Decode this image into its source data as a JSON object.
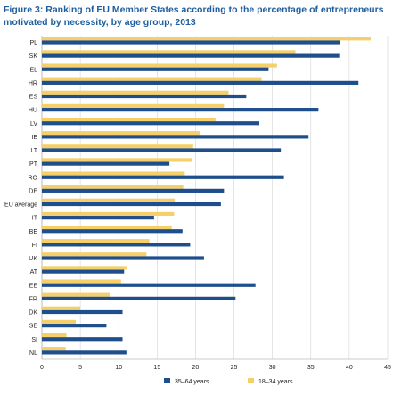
{
  "title": "Figure 3: Ranking of EU Member States according to the percentage of entrepreneurs motivated by necessity, by age group, 2013",
  "chart_data": {
    "type": "bar",
    "orientation": "horizontal",
    "categories": [
      "PL",
      "SK",
      "EL",
      "HR",
      "ES",
      "HU",
      "LV",
      "IE",
      "LT",
      "PT",
      "RO",
      "DE",
      "EU average",
      "IT",
      "BE",
      "FI",
      "UK",
      "AT",
      "EE",
      "FR",
      "DK",
      "SE",
      "SI",
      "NL"
    ],
    "series": [
      {
        "name": "18–34 years",
        "color": "#f5d06a",
        "values": [
          42.8,
          33.0,
          30.6,
          28.6,
          24.3,
          23.7,
          22.6,
          20.6,
          19.7,
          19.5,
          18.6,
          18.4,
          17.3,
          17.2,
          16.9,
          14.0,
          13.6,
          11.0,
          10.3,
          8.9,
          5.0,
          4.4,
          3.2,
          3.1
        ]
      },
      {
        "name": "35–64 years",
        "color": "#1f4e8c",
        "values": [
          38.8,
          38.7,
          29.5,
          41.2,
          26.6,
          36.0,
          28.3,
          34.7,
          31.1,
          16.6,
          31.5,
          23.7,
          23.3,
          14.6,
          18.3,
          19.3,
          21.1,
          10.7,
          27.8,
          25.2,
          10.5,
          8.4,
          10.5,
          11.0
        ]
      }
    ],
    "xlim": [
      0,
      45
    ],
    "xticks": [
      "0",
      "5",
      "10",
      "15",
      "20",
      "25",
      "30",
      "35",
      "40",
      "45"
    ],
    "grid": "vertical",
    "legend_position": "bottom"
  }
}
